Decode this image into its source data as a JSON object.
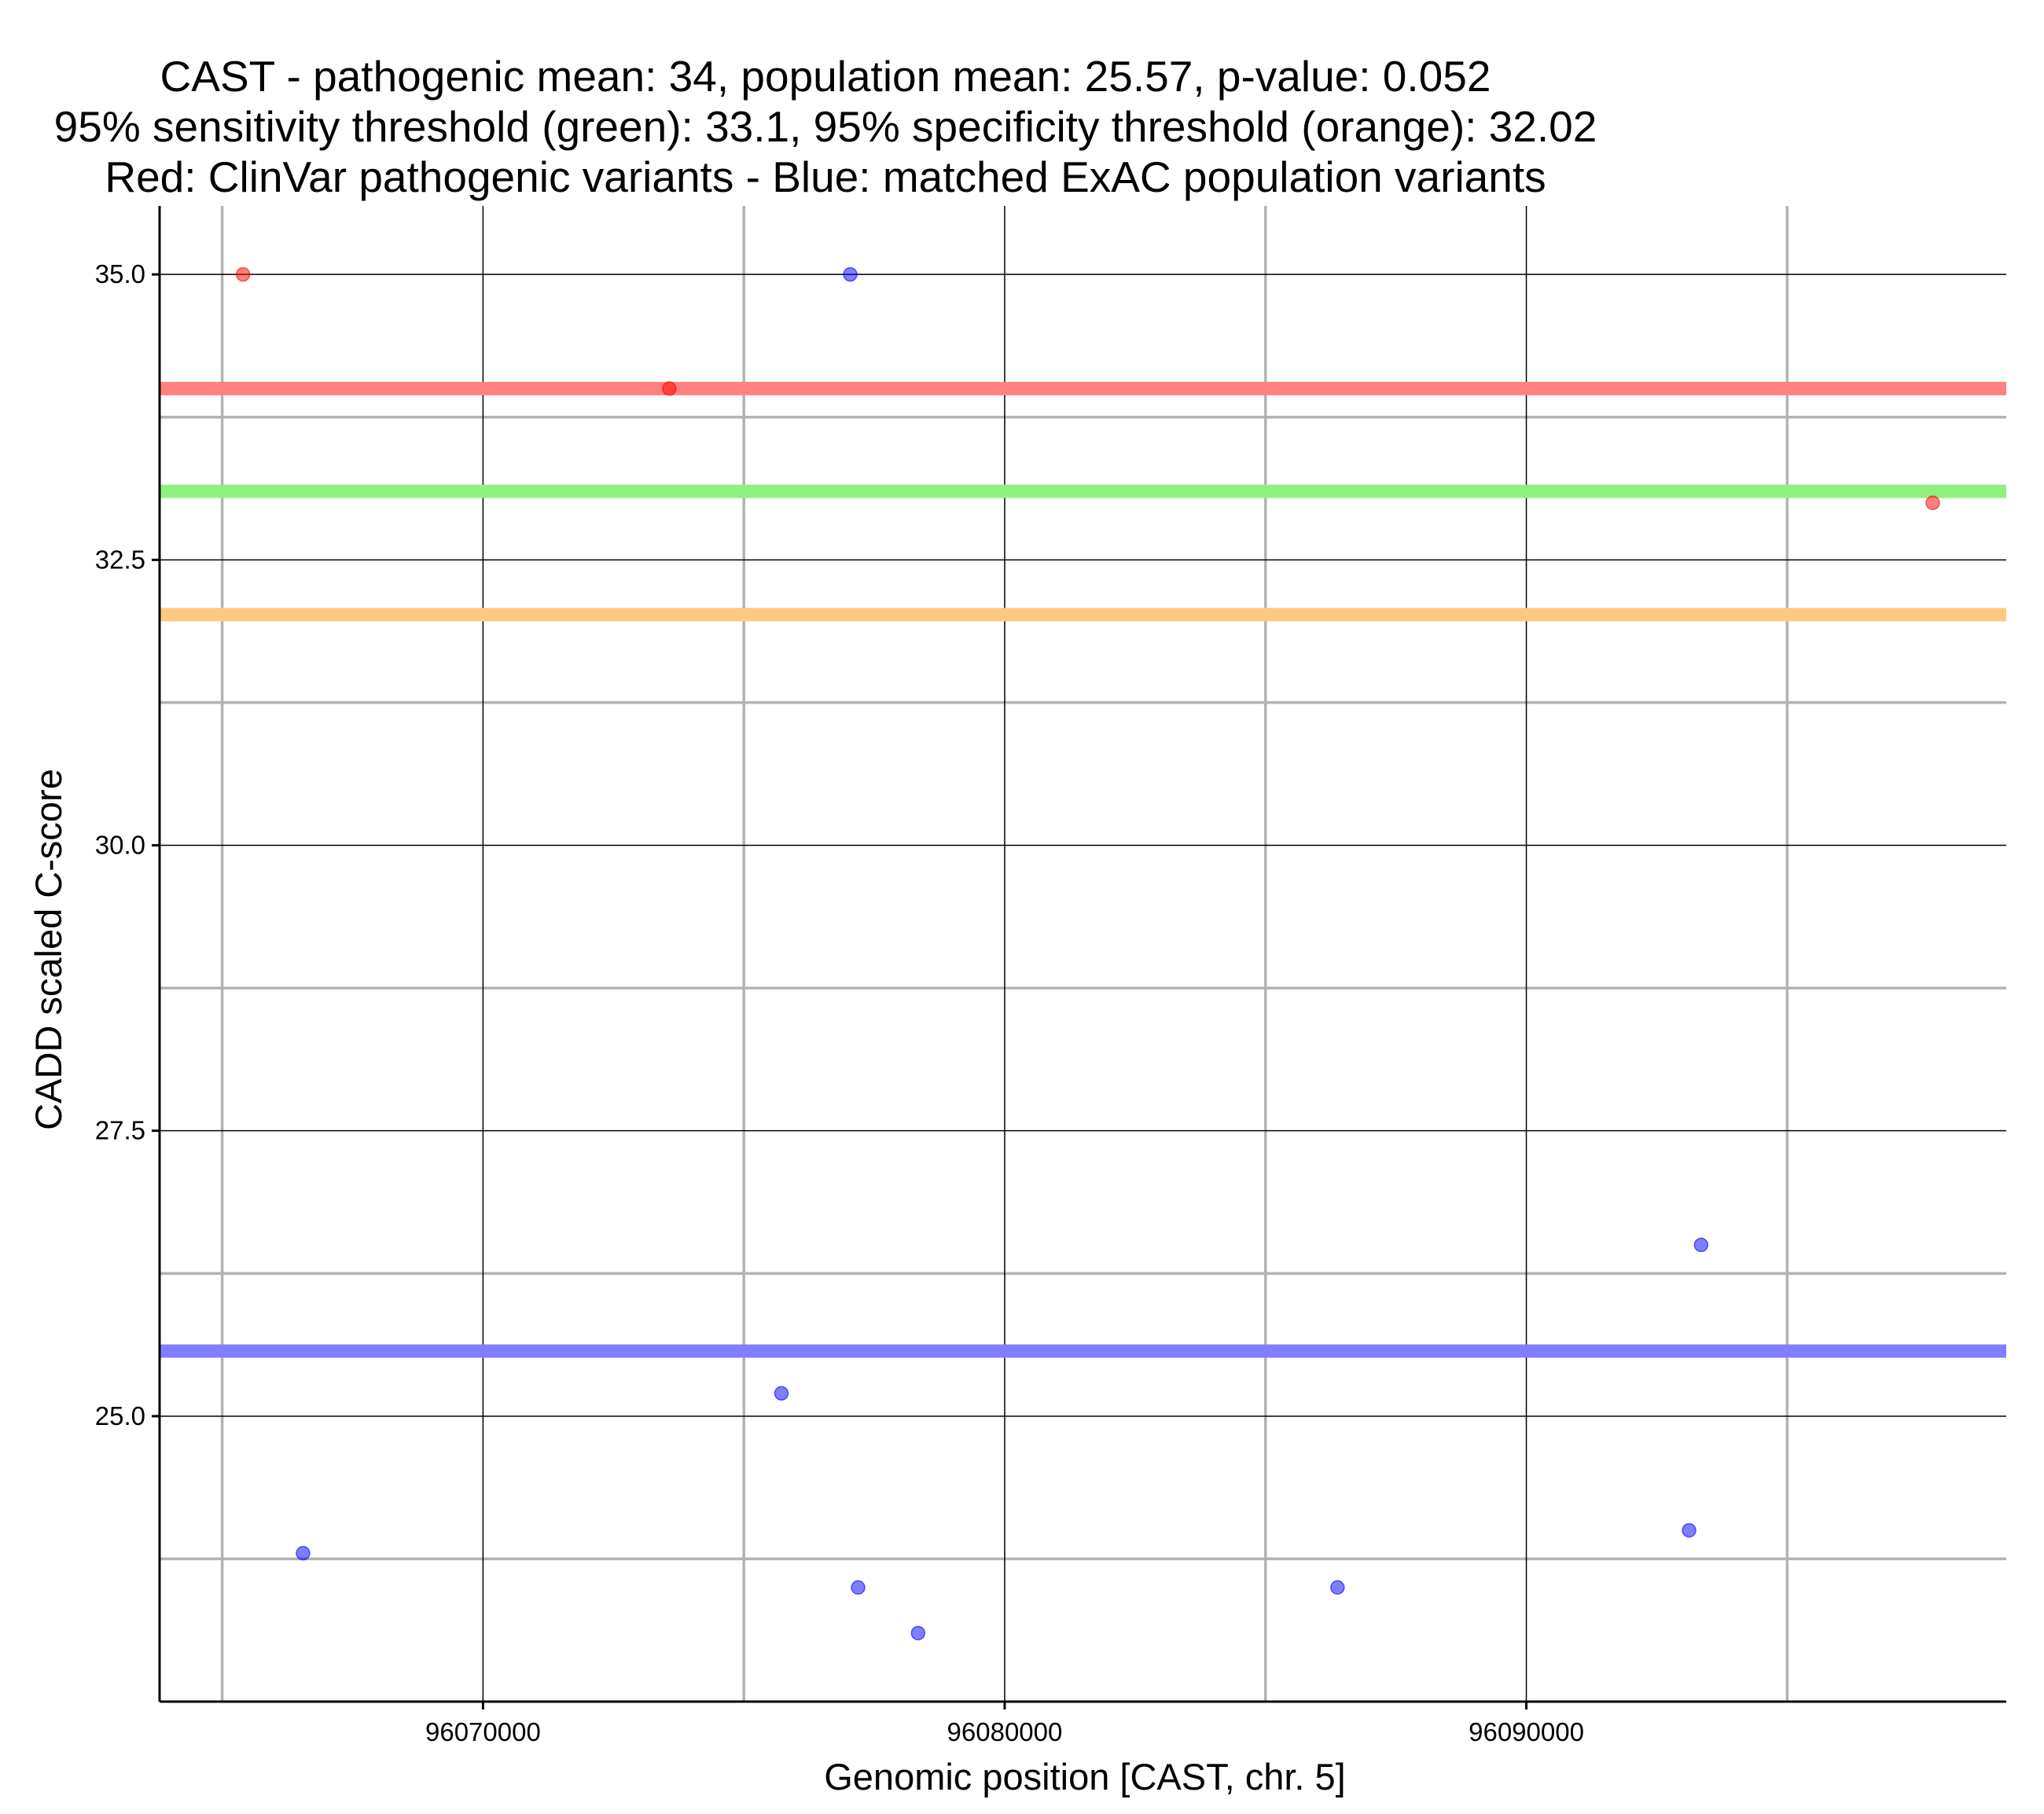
{
  "chart_data": {
    "type": "scatter",
    "title": [
      "CAST - pathogenic mean: 34, population mean: 25.57, p-value: 0.052",
      "95% sensitivity threshold (green): 33.1, 95% specificity threshold (orange): 32.02",
      "Red: ClinVar pathogenic variants - Blue: matched ExAC population variants"
    ],
    "xlabel": "Genomic position [CAST, chr. 5]",
    "ylabel": "CADD scaled C-score",
    "xlim": [
      96063800,
      96099200
    ],
    "ylim": [
      22.5,
      35.6
    ],
    "x_ticks": [
      96070000,
      96080000,
      96090000
    ],
    "x_tick_labels": [
      "96070000",
      "96080000",
      "96090000"
    ],
    "y_ticks": [
      25.0,
      27.5,
      30.0,
      32.5,
      35.0
    ],
    "y_tick_labels": [
      "25.0",
      "27.5",
      "30.0",
      "32.5",
      "35.0"
    ],
    "x_minor_grid": [
      96065000,
      96075000,
      96085000,
      96095000
    ],
    "y_minor_grid": [
      23.75,
      26.25,
      28.75,
      31.25,
      33.75
    ],
    "grid": true,
    "series": [
      {
        "color": "#ff0000",
        "points": [
          {
            "x": 96065400,
            "y": 35.0
          },
          {
            "x": 96073570,
            "y": 34.0
          },
          {
            "x": 96097790,
            "y": 33.0
          }
        ]
      },
      {
        "color": "#0000ff",
        "points": [
          {
            "x": 96077040,
            "y": 35.0
          },
          {
            "x": 96066550,
            "y": 23.8
          },
          {
            "x": 96075720,
            "y": 25.2
          },
          {
            "x": 96077190,
            "y": 23.5
          },
          {
            "x": 96078340,
            "y": 23.1
          },
          {
            "x": 96086380,
            "y": 23.5
          },
          {
            "x": 96093120,
            "y": 24.0
          },
          {
            "x": 96093350,
            "y": 26.5
          }
        ]
      }
    ],
    "reference_lines": [
      {
        "y": 34.0,
        "color": "#ff8080"
      },
      {
        "y": 33.1,
        "color": "#90f080"
      },
      {
        "y": 32.02,
        "color": "#ffc880"
      },
      {
        "y": 25.57,
        "color": "#8080ff"
      }
    ]
  }
}
